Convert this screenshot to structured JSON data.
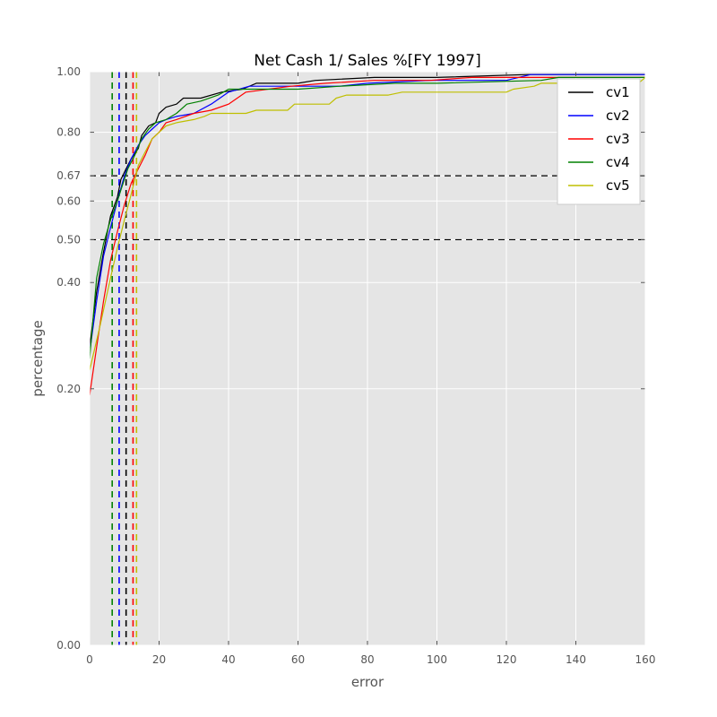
{
  "chart_data": {
    "type": "line",
    "title": "Net Cash 1/ Sales %[FY 1997]",
    "xlabel": "error",
    "ylabel": "percentage",
    "xlim": [
      0,
      160
    ],
    "ylim": [
      0,
      1
    ],
    "x_ticks": [
      0,
      20,
      40,
      60,
      80,
      100,
      120,
      140,
      160
    ],
    "y_ticks": [
      0.0,
      0.2,
      0.4,
      0.5,
      0.6,
      0.67,
      0.8,
      1.0
    ],
    "y_tick_labels": [
      "0.00",
      "0.20",
      "0.40",
      "0.50",
      "0.60",
      "0.67",
      "0.80",
      "1.00"
    ],
    "y_scale": "sqrt",
    "grid": true,
    "background": "#e5e5e5",
    "legend_position": "top-right",
    "hlines": [
      0.5,
      0.67
    ],
    "series": [
      {
        "name": "cv1",
        "color": "#000000",
        "points": [
          [
            0,
            0.27
          ],
          [
            2,
            0.38
          ],
          [
            4,
            0.47
          ],
          [
            6,
            0.56
          ],
          [
            8,
            0.61
          ],
          [
            9,
            0.66
          ],
          [
            11,
            0.7
          ],
          [
            12,
            0.72
          ],
          [
            14,
            0.75
          ],
          [
            15,
            0.79
          ],
          [
            17,
            0.82
          ],
          [
            19,
            0.83
          ],
          [
            20,
            0.86
          ],
          [
            22,
            0.88
          ],
          [
            25,
            0.89
          ],
          [
            27,
            0.91
          ],
          [
            32,
            0.91
          ],
          [
            38,
            0.93
          ],
          [
            44,
            0.94
          ],
          [
            48,
            0.96
          ],
          [
            60,
            0.96
          ],
          [
            65,
            0.97
          ],
          [
            82,
            0.98
          ],
          [
            100,
            0.98
          ],
          [
            126,
            0.99
          ],
          [
            160,
            0.99
          ]
        ],
        "vline": 10.5
      },
      {
        "name": "cv2",
        "color": "#0000ff",
        "points": [
          [
            0,
            0.26
          ],
          [
            2,
            0.36
          ],
          [
            4,
            0.46
          ],
          [
            6,
            0.53
          ],
          [
            8,
            0.6
          ],
          [
            10,
            0.67
          ],
          [
            12,
            0.72
          ],
          [
            14,
            0.76
          ],
          [
            16,
            0.79
          ],
          [
            18,
            0.81
          ],
          [
            20,
            0.83
          ],
          [
            22,
            0.84
          ],
          [
            25,
            0.85
          ],
          [
            30,
            0.86
          ],
          [
            35,
            0.89
          ],
          [
            40,
            0.93
          ],
          [
            46,
            0.95
          ],
          [
            60,
            0.95
          ],
          [
            72,
            0.95
          ],
          [
            80,
            0.96
          ],
          [
            98,
            0.97
          ],
          [
            120,
            0.97
          ],
          [
            127,
            0.99
          ],
          [
            160,
            0.99
          ]
        ],
        "vline": 8.5
      },
      {
        "name": "cv3",
        "color": "#ff0000",
        "points": [
          [
            0,
            0.19
          ],
          [
            2,
            0.27
          ],
          [
            4,
            0.36
          ],
          [
            6,
            0.45
          ],
          [
            8,
            0.52
          ],
          [
            10,
            0.59
          ],
          [
            12,
            0.65
          ],
          [
            14,
            0.69
          ],
          [
            16,
            0.73
          ],
          [
            18,
            0.78
          ],
          [
            20,
            0.8
          ],
          [
            22,
            0.83
          ],
          [
            25,
            0.84
          ],
          [
            30,
            0.86
          ],
          [
            35,
            0.87
          ],
          [
            40,
            0.89
          ],
          [
            45,
            0.93
          ],
          [
            58,
            0.95
          ],
          [
            68,
            0.96
          ],
          [
            82,
            0.97
          ],
          [
            98,
            0.97
          ],
          [
            110,
            0.98
          ],
          [
            160,
            0.98
          ]
        ],
        "vline": 12.5
      },
      {
        "name": "cv4",
        "color": "#008000",
        "points": [
          [
            0,
            0.25
          ],
          [
            2,
            0.41
          ],
          [
            4,
            0.49
          ],
          [
            6,
            0.55
          ],
          [
            8,
            0.6
          ],
          [
            9,
            0.63
          ],
          [
            11,
            0.69
          ],
          [
            13,
            0.73
          ],
          [
            15,
            0.78
          ],
          [
            17,
            0.81
          ],
          [
            19,
            0.83
          ],
          [
            22,
            0.84
          ],
          [
            25,
            0.86
          ],
          [
            28,
            0.89
          ],
          [
            32,
            0.9
          ],
          [
            37,
            0.92
          ],
          [
            40,
            0.94
          ],
          [
            60,
            0.94
          ],
          [
            72,
            0.95
          ],
          [
            88,
            0.96
          ],
          [
            100,
            0.96
          ],
          [
            130,
            0.97
          ],
          [
            135,
            0.98
          ],
          [
            160,
            0.98
          ]
        ],
        "vline": 6.5
      },
      {
        "name": "cv5",
        "color": "#bfbf00",
        "points": [
          [
            0,
            0.23
          ],
          [
            3,
            0.31
          ],
          [
            6,
            0.41
          ],
          [
            8,
            0.48
          ],
          [
            10,
            0.55
          ],
          [
            12,
            0.62
          ],
          [
            14,
            0.7
          ],
          [
            16,
            0.74
          ],
          [
            18,
            0.78
          ],
          [
            20,
            0.8
          ],
          [
            22,
            0.82
          ],
          [
            25,
            0.83
          ],
          [
            30,
            0.84
          ],
          [
            33,
            0.85
          ],
          [
            35,
            0.86
          ],
          [
            45,
            0.86
          ],
          [
            48,
            0.87
          ],
          [
            57,
            0.87
          ],
          [
            59,
            0.89
          ],
          [
            69,
            0.89
          ],
          [
            71,
            0.91
          ],
          [
            74,
            0.92
          ],
          [
            86,
            0.92
          ],
          [
            90,
            0.93
          ],
          [
            120,
            0.93
          ],
          [
            122,
            0.94
          ],
          [
            128,
            0.95
          ],
          [
            130,
            0.96
          ],
          [
            158,
            0.96
          ],
          [
            160,
            0.98
          ]
        ],
        "vline": 13.5
      }
    ]
  }
}
